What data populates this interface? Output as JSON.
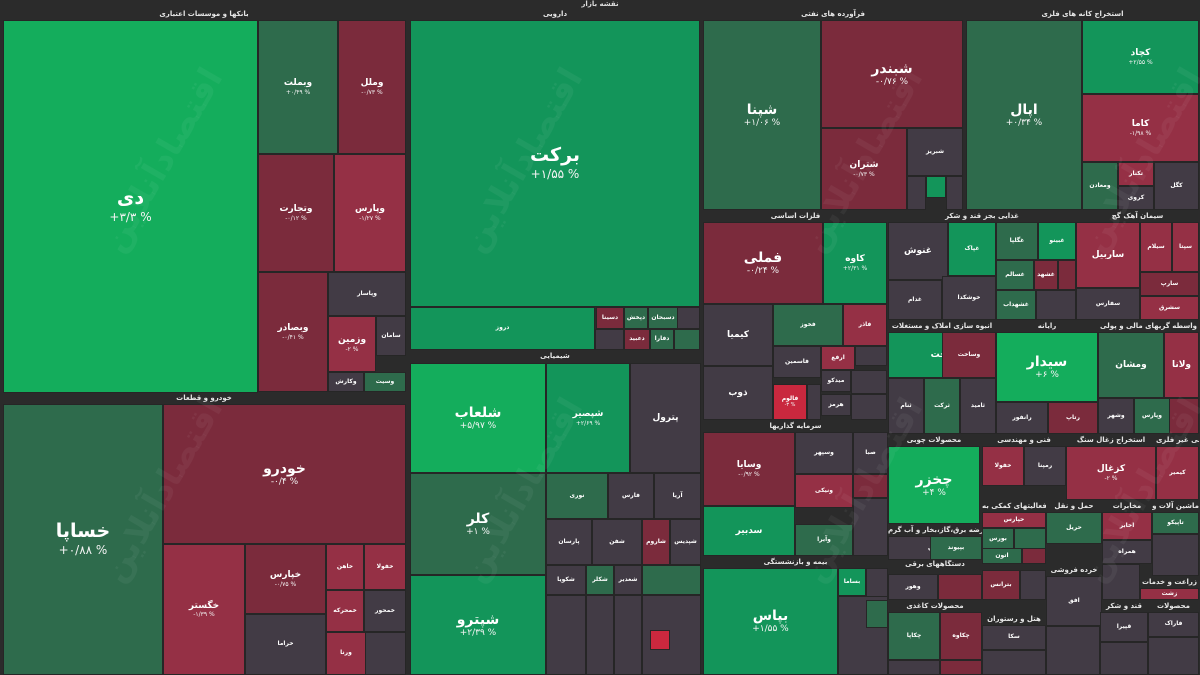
{
  "title": "نقشه بازار",
  "watermark": "اقتصادآنلاین",
  "colors": {
    "neutral": "#423b45",
    "red": "#7b2b3c",
    "red_light": "#953045",
    "red_bright": "#c9283e",
    "green": "#2e6b4c",
    "green_mid": "#13955a",
    "green_bright": "#14ad5c"
  },
  "chart_data": {
    "type": "treemap",
    "sectors": [
      {
        "name": "بانکها و موسسات اعتباری",
        "tiles": [
          {
            "symbol": "دی",
            "change": "+۳/۳ %",
            "value": 3.3
          },
          {
            "symbol": "وبملت",
            "change": "+۰/۴۹ %",
            "value": 0.49
          },
          {
            "symbol": "وملل",
            "change": "-۰/۷۳ %",
            "value": -0.73
          },
          {
            "symbol": "وتجارت",
            "change": "-۰/۱۲ %",
            "value": -0.12
          },
          {
            "symbol": "وپارس",
            "change": "-۱/۲۷ %",
            "value": -1.27
          },
          {
            "symbol": "وپاسار",
            "change": "",
            "value": 0
          },
          {
            "symbol": "وبصادر",
            "change": "-۰/۴۱ %",
            "value": -0.41
          },
          {
            "symbol": "وزمین",
            "change": "-۲ %",
            "value": -2
          },
          {
            "symbol": "سامان",
            "change": "",
            "value": 0
          },
          {
            "symbol": "وکارش",
            "change": "",
            "value": 0
          },
          {
            "symbol": "وسیت",
            "change": "",
            "value": 0.5
          }
        ]
      },
      {
        "name": "دارویی",
        "tiles": [
          {
            "symbol": "برکت",
            "change": "+۱/۵۵ %",
            "value": 1.55
          },
          {
            "symbol": "دروز",
            "change": "",
            "value": 1.5
          },
          {
            "symbol": "دسبحان",
            "change": "",
            "value": 0.3
          },
          {
            "symbol": "دسینا",
            "change": "",
            "value": -0.5
          },
          {
            "symbol": "دعبید",
            "change": "",
            "value": -0.8
          },
          {
            "symbol": "دفارا",
            "change": "",
            "value": 0.2
          },
          {
            "symbol": "دپخش",
            "change": "",
            "value": 0.4
          }
        ]
      },
      {
        "name": "فرآورده های نفتی",
        "tiles": [
          {
            "symbol": "شپنا",
            "change": "+۱/۰۶ %",
            "value": 1.06
          },
          {
            "symbol": "شبندر",
            "change": "-۰/۷۶ %",
            "value": -0.76
          },
          {
            "symbol": "شتران",
            "change": "-۰/۷۳ %",
            "value": -0.73
          },
          {
            "symbol": "شبریز",
            "change": "",
            "value": 0
          }
        ]
      },
      {
        "name": "استخراج کانه های فلزی",
        "tiles": [
          {
            "symbol": "کچاد",
            "change": "+۲/۵۵ %",
            "value": 2.55
          },
          {
            "symbol": "اپال",
            "change": "+۰/۳۴ %",
            "value": 0.34
          },
          {
            "symbol": "کاما",
            "change": "-۱/۹۸ %",
            "value": -1.98
          },
          {
            "symbol": "کگل",
            "change": "",
            "value": 0
          },
          {
            "symbol": "تکنار",
            "change": "",
            "value": -1
          },
          {
            "symbol": "کروی",
            "change": "",
            "value": 0
          },
          {
            "symbol": "ومعادن",
            "change": "",
            "value": 0.5
          }
        ]
      },
      {
        "name": "فلزات اساسی",
        "tiles": [
          {
            "symbol": "فملی",
            "change": "-۰/۲۴ %",
            "value": -0.24
          },
          {
            "symbol": "کاوه",
            "change": "+۲/۳۱ %",
            "value": 2.31
          },
          {
            "symbol": "کیمیا",
            "change": "",
            "value": 0
          },
          {
            "symbol": "فخوز",
            "change": "",
            "value": 0.5
          },
          {
            "symbol": "فاذر",
            "change": "",
            "value": -1
          },
          {
            "symbol": "ذوب",
            "change": "",
            "value": 0
          },
          {
            "symbol": "فاسمین",
            "change": "",
            "value": 0
          },
          {
            "symbol": "ارفع",
            "change": "",
            "value": -1
          },
          {
            "symbol": "فالوم",
            "change": "-۳ %",
            "value": -3
          },
          {
            "symbol": "میدکو",
            "change": "",
            "value": 0
          },
          {
            "symbol": "هرمز",
            "change": "",
            "value": 0
          }
        ]
      },
      {
        "name": "غذایی بجز قند و شکر",
        "tiles": [
          {
            "symbol": "غنوش",
            "change": "",
            "value": 0
          },
          {
            "symbol": "غپاک",
            "change": "",
            "value": 2
          },
          {
            "symbol": "غگلپا",
            "change": "",
            "value": 0.5
          },
          {
            "symbol": "غبینو",
            "change": "",
            "value": 1.5
          },
          {
            "symbol": "غسالم",
            "change": "",
            "value": 0.5
          },
          {
            "symbol": "غشهد",
            "change": "",
            "value": -0.5
          },
          {
            "symbol": "غدام",
            "change": "",
            "value": 0
          },
          {
            "symbol": "خوشکدا",
            "change": "",
            "value": 0
          },
          {
            "symbol": "غشهداب",
            "change": "",
            "value": 0.5
          }
        ]
      },
      {
        "name": "سیمان آهک گچ",
        "tiles": [
          {
            "symbol": "ساربیل",
            "change": "",
            "value": -1
          },
          {
            "symbol": "سیلام",
            "change": "",
            "value": -1
          },
          {
            "symbol": "سپتا",
            "change": "",
            "value": -1
          },
          {
            "symbol": "سارپ",
            "change": "",
            "value": -0.5
          },
          {
            "symbol": "سفارس",
            "change": "",
            "value": 0
          },
          {
            "symbol": "سشرق",
            "change": "",
            "value": -1
          }
        ]
      },
      {
        "name": "شیمیایی",
        "tiles": [
          {
            "symbol": "شلعاب",
            "change": "+۵/۹۷ %",
            "value": 5.97
          },
          {
            "symbol": "شپصیر",
            "change": "+۲/۶۹ %",
            "value": 2.69
          },
          {
            "symbol": "پترول",
            "change": "",
            "value": 0
          },
          {
            "symbol": "کلر",
            "change": "+۱ %",
            "value": 1
          },
          {
            "symbol": "شپترو",
            "change": "+۲/۳۹ %",
            "value": 2.39
          },
          {
            "symbol": "نوری",
            "change": "",
            "value": 0.5
          },
          {
            "symbol": "فارس",
            "change": "",
            "value": 0
          },
          {
            "symbol": "آریا",
            "change": "",
            "value": 0
          },
          {
            "symbol": "پارسان",
            "change": "",
            "value": 0
          },
          {
            "symbol": "شغدیر",
            "change": "",
            "value": 0
          },
          {
            "symbol": "شاروم",
            "change": "",
            "value": -0.5
          },
          {
            "symbol": "شفن",
            "change": "",
            "value": 0
          },
          {
            "symbol": "شکلر",
            "change": "",
            "value": 0.5
          },
          {
            "symbol": "شکویا",
            "change": "",
            "value": 0
          },
          {
            "symbol": "شپدیس",
            "change": "",
            "value": 0
          }
        ]
      },
      {
        "name": "خودرو و قطعات",
        "tiles": [
          {
            "symbol": "خساپا",
            "change": "+۰/۸۸ %",
            "value": 0.88
          },
          {
            "symbol": "خودرو",
            "change": "-۰/۴ %",
            "value": -0.4
          },
          {
            "symbol": "خگستر",
            "change": "-۱/۳۹ %",
            "value": -1.39
          },
          {
            "symbol": "خپارس",
            "change": "-۰/۷۵ %",
            "value": -0.75
          },
          {
            "symbol": "خاهن",
            "change": "",
            "value": -1
          },
          {
            "symbol": "خفولا",
            "change": "",
            "value": -1
          },
          {
            "symbol": "خراما",
            "change": "",
            "value": 0
          },
          {
            "symbol": "خمحرکه",
            "change": "",
            "value": -1
          },
          {
            "symbol": "خمحور",
            "change": "",
            "value": 0
          },
          {
            "symbol": "ورنا",
            "change": "",
            "value": -1
          }
        ]
      },
      {
        "name": "سرمایه گذاریها",
        "tiles": [
          {
            "symbol": "وسایا",
            "change": "-۰/۹۲ %",
            "value": -0.92
          },
          {
            "symbol": "وسپهر",
            "change": "",
            "value": 0
          },
          {
            "symbol": "صبا",
            "change": "",
            "value": 0
          },
          {
            "symbol": "ونیکی",
            "change": "",
            "value": -1
          },
          {
            "symbol": "سدبیر",
            "change": "",
            "value": 1.5
          },
          {
            "symbol": "وآیرا",
            "change": "",
            "value": 0.5
          }
        ]
      },
      {
        "name": "بیمه و بازنشستگی",
        "tiles": [
          {
            "symbol": "بپاس",
            "change": "+۱/۵۵ %",
            "value": 1.55
          },
          {
            "symbol": "بساما",
            "change": "",
            "value": 1.5
          }
        ]
      },
      {
        "name": "انبوه سازی املاک و مستغلات",
        "tiles": [
          {
            "symbol": "ثاخت",
            "change": "",
            "value": 1.5
          },
          {
            "symbol": "ثنام",
            "change": "",
            "value": 0
          },
          {
            "symbol": "ثرکت",
            "change": "",
            "value": 0.5
          },
          {
            "symbol": "وساخت",
            "change": "",
            "value": -0.5
          },
          {
            "symbol": "ثامید",
            "change": "",
            "value": 0
          }
        ]
      },
      {
        "name": "رایانه",
        "tiles": [
          {
            "symbol": "سیدار",
            "change": "+۶ %",
            "value": 6
          },
          {
            "symbol": "رانفور",
            "change": "",
            "value": 0
          },
          {
            "symbol": "رتاپ",
            "change": "",
            "value": -0.5
          }
        ]
      },
      {
        "name": "واسطه گریهای مالی و پولی",
        "tiles": [
          {
            "symbol": "ومشان",
            "change": "",
            "value": 0.5
          },
          {
            "symbol": "ولانا",
            "change": "",
            "value": -1.5
          },
          {
            "symbol": "وشهر",
            "change": "",
            "value": 0
          },
          {
            "symbol": "وپارس",
            "change": "",
            "value": 0.5
          }
        ]
      },
      {
        "name": "محصولات چوبی",
        "tiles": [
          {
            "symbol": "چخزر",
            "change": "+۴ %",
            "value": 4
          }
        ]
      },
      {
        "name": "فنی و مهندسی",
        "tiles": [
          {
            "symbol": "خفولا",
            "change": "",
            "value": -1
          },
          {
            "symbol": "رمپنا",
            "change": "",
            "value": 0
          }
        ]
      },
      {
        "name": "استخراج زغال سنگ",
        "tiles": [
          {
            "symbol": "کزغال",
            "change": "-۲ %",
            "value": -2
          }
        ]
      },
      {
        "name": "کانی غیر فلزی",
        "tiles": [
          {
            "symbol": "کیمیر",
            "change": "",
            "value": -1
          }
        ]
      },
      {
        "name": "فعالیتهای کمکی به",
        "tiles": [
          {
            "symbol": "حپارس",
            "change": "",
            "value": -1
          },
          {
            "symbol": "بورس",
            "change": "",
            "value": 0.5
          },
          {
            "symbol": "اتون",
            "change": "",
            "value": 0.5
          }
        ]
      },
      {
        "name": "حمل و نقل",
        "tiles": [
          {
            "symbol": "حریل",
            "change": "",
            "value": 0.5
          }
        ]
      },
      {
        "name": "مخابرات",
        "tiles": [
          {
            "symbol": "اخابر",
            "change": "",
            "value": -1
          },
          {
            "symbol": "همراه",
            "change": "",
            "value": 0
          }
        ]
      },
      {
        "name": "ماشین آلات و",
        "tiles": [
          {
            "symbol": "تاپیکو",
            "change": "",
            "value": 0.5
          }
        ]
      },
      {
        "name": "عرضه برق،گاز،بخار و آب گرم",
        "tiles": [
          {
            "symbol": "مپین",
            "change": "",
            "value": 0
          },
          {
            "symbol": "بپیوند",
            "change": "",
            "value": 0.5
          },
          {
            "symbol": "وهور",
            "change": "",
            "value": 0
          }
        ]
      },
      {
        "name": "دستگاههای برقی",
        "tiles": [
          {
            "symbol": "بترانس",
            "change": "",
            "value": -0.5
          }
        ]
      },
      {
        "name": "خرده فروشی",
        "tiles": [
          {
            "symbol": "افق",
            "change": "",
            "value": 0
          }
        ]
      },
      {
        "name": "زراعت و خدمات",
        "tiles": [
          {
            "symbol": "زشت",
            "change": "",
            "value": -1
          }
        ]
      },
      {
        "name": "محصولات کاغذی",
        "tiles": [
          {
            "symbol": "چکاوه",
            "change": "",
            "value": -0.5
          },
          {
            "symbol": "چکاپا",
            "change": "",
            "value": 0.5
          }
        ]
      },
      {
        "name": "هتل و رستوران",
        "tiles": [
          {
            "symbol": "سکا",
            "change": "",
            "value": 0
          }
        ]
      },
      {
        "name": "قند و شکر",
        "tiles": [
          {
            "symbol": "قپیرا",
            "change": "",
            "value": 0
          }
        ]
      },
      {
        "name": "محصولات",
        "tiles": [
          {
            "symbol": "فاراک",
            "change": "",
            "value": 0
          }
        ]
      }
    ]
  }
}
